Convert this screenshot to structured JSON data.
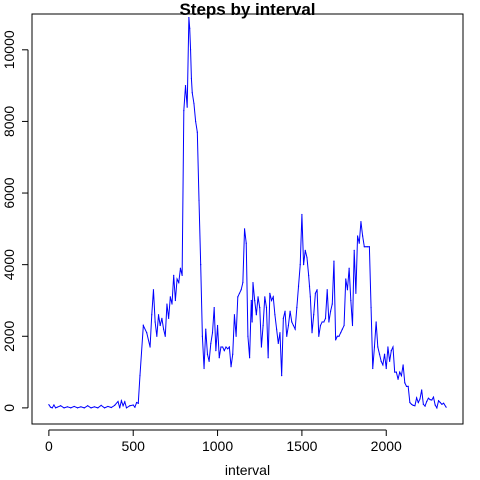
{
  "chart_data": {
    "type": "line",
    "title": "Steps by interval",
    "xlabel": "interval",
    "ylabel": "",
    "xlim": [
      -100,
      2455
    ],
    "ylim": [
      -450,
      11000
    ],
    "xticks": [
      0,
      500,
      1000,
      1500,
      2000
    ],
    "yticks": [
      0,
      2000,
      4000,
      6000,
      8000,
      10000
    ],
    "grid": false,
    "legend": "none",
    "line_color": "#0000ff",
    "series": [
      {
        "x": [
          0,
          10,
          20,
          30,
          40,
          50,
          70,
          90,
          110,
          130,
          150,
          170,
          190,
          210,
          230,
          250,
          270,
          290,
          310,
          330,
          350,
          370,
          390,
          410,
          420,
          430,
          440,
          450,
          460,
          480,
          500,
          510,
          520,
          530,
          540,
          560,
          580,
          600,
          610,
          620,
          630,
          640,
          650,
          660,
          670,
          680,
          690,
          700,
          710,
          720,
          730,
          740,
          750,
          760,
          770,
          780,
          790,
          800,
          810,
          820,
          830,
          835,
          840,
          845,
          850,
          860,
          870,
          880,
          890,
          900,
          910,
          920,
          930,
          940,
          950,
          960,
          970,
          980,
          990,
          1000,
          1010,
          1020,
          1030,
          1040,
          1050,
          1060,
          1070,
          1080,
          1090,
          1100,
          1110,
          1120,
          1130,
          1140,
          1150,
          1160,
          1170,
          1180,
          1190,
          1200,
          1205,
          1210,
          1220,
          1230,
          1240,
          1250,
          1260,
          1270,
          1280,
          1290,
          1300,
          1310,
          1320,
          1330,
          1340,
          1350,
          1360,
          1370,
          1380,
          1390,
          1400,
          1410,
          1420,
          1430,
          1440,
          1450,
          1460,
          1470,
          1480,
          1490,
          1500,
          1510,
          1520,
          1530,
          1540,
          1545,
          1550,
          1560,
          1570,
          1580,
          1590,
          1600,
          1610,
          1620,
          1630,
          1640,
          1650,
          1660,
          1670,
          1680,
          1690,
          1700,
          1710,
          1720,
          1730,
          1740,
          1750,
          1760,
          1770,
          1780,
          1790,
          1800,
          1810,
          1820,
          1830,
          1840,
          1850,
          1860,
          1870,
          1880,
          1890,
          1900,
          1910,
          1920,
          1930,
          1940,
          1950,
          1960,
          1970,
          1980,
          1990,
          2000,
          2010,
          2020,
          2030,
          2040,
          2050,
          2060,
          2070,
          2080,
          2090,
          2100,
          2110,
          2120,
          2130,
          2140,
          2150,
          2160,
          2170,
          2180,
          2190,
          2200,
          2210,
          2220,
          2230,
          2240,
          2250,
          2260,
          2270,
          2280,
          2290,
          2300,
          2310,
          2320,
          2330,
          2340,
          2355
        ],
        "y": [
          90,
          20,
          0,
          80,
          0,
          20,
          60,
          0,
          30,
          0,
          40,
          0,
          30,
          0,
          60,
          0,
          30,
          0,
          70,
          0,
          40,
          10,
          70,
          180,
          0,
          200,
          60,
          170,
          0,
          60,
          80,
          20,
          150,
          130,
          900,
          2300,
          2100,
          1700,
          2600,
          3300,
          2400,
          2000,
          2600,
          2300,
          2500,
          2200,
          2000,
          2900,
          2500,
          3100,
          2900,
          3700,
          3000,
          3600,
          3500,
          3900,
          3700,
          8300,
          9000,
          8400,
          10900,
          10600,
          10000,
          9200,
          8800,
          8500,
          8000,
          7700,
          5800,
          4000,
          2000,
          1100,
          2200,
          1500,
          1300,
          1800,
          2100,
          2800,
          1600,
          2300,
          1400,
          1700,
          1700,
          1600,
          1700,
          1650,
          1700,
          1150,
          1500,
          2600,
          2000,
          3100,
          3200,
          3300,
          3500,
          5000,
          4600,
          2000,
          1400,
          3000,
          2400,
          3500,
          3000,
          2600,
          3100,
          2800,
          1700,
          2300,
          3100,
          2800,
          1400,
          3200,
          3000,
          3100,
          2600,
          2200,
          1800,
          2100,
          900,
          2500,
          2700,
          2000,
          2300,
          2700,
          2400,
          2300,
          2200,
          2800,
          3400,
          4000,
          5400,
          4000,
          4400,
          4200,
          3700,
          3400,
          3100,
          2100,
          2600,
          3200,
          3300,
          2000,
          2300,
          2400,
          2400,
          2500,
          3300,
          2400,
          2700,
          2900,
          4100,
          1900,
          2000,
          2000,
          2100,
          2200,
          2300,
          3600,
          3300,
          3900,
          3000,
          2300,
          4400,
          3200,
          4800,
          4600,
          5200,
          4800,
          4500,
          4500,
          4500,
          4500,
          2800,
          1100,
          1700,
          2400,
          1700,
          1500,
          1300,
          1200,
          1500,
          1100,
          1700,
          1300,
          1600,
          1700,
          1000,
          1000,
          800,
          1000,
          900,
          1200,
          700,
          600,
          600,
          150,
          100,
          70,
          60,
          280,
          150,
          250,
          500,
          100,
          50,
          180,
          270,
          230,
          220,
          300,
          80,
          0,
          200,
          150,
          100,
          130,
          20
        ]
      }
    ]
  }
}
